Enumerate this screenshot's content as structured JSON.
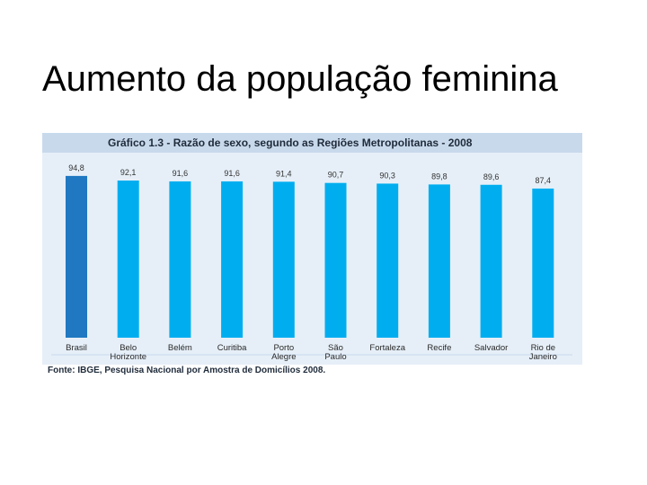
{
  "slide": {
    "title": "Aumento da população feminina"
  },
  "chart_data": {
    "type": "bar",
    "title": "Gráfico 1.3 - Razão de sexo, segundo as Regiões Metropolitanas - 2008",
    "categories": [
      [
        "Brasil"
      ],
      [
        "Belo",
        "Horizonte"
      ],
      [
        "Belém"
      ],
      [
        "Curitiba"
      ],
      [
        "Porto",
        "Alegre"
      ],
      [
        "São",
        "Paulo"
      ],
      [
        "Fortaleza"
      ],
      [
        "Recife"
      ],
      [
        "Salvador"
      ],
      [
        "Rio de",
        "Janeiro"
      ]
    ],
    "values": [
      94.8,
      92.1,
      91.6,
      91.6,
      91.4,
      90.7,
      90.3,
      89.8,
      89.6,
      87.4
    ],
    "value_labels": [
      "94,8",
      "92,1",
      "91,6",
      "91,6",
      "91,4",
      "90,7",
      "90,3",
      "89,8",
      "89,6",
      "87,4"
    ],
    "ylim": [
      0,
      100
    ],
    "grid": false,
    "legend": "none",
    "colors": {
      "highlight": "#1f78c1",
      "bar": "#00aeef",
      "panel_background": "#e6eff8",
      "header_background": "#c8d9ec"
    },
    "source": "Fonte: IBGE, Pesquisa Nacional por Amostra de Domicílios 2008."
  }
}
